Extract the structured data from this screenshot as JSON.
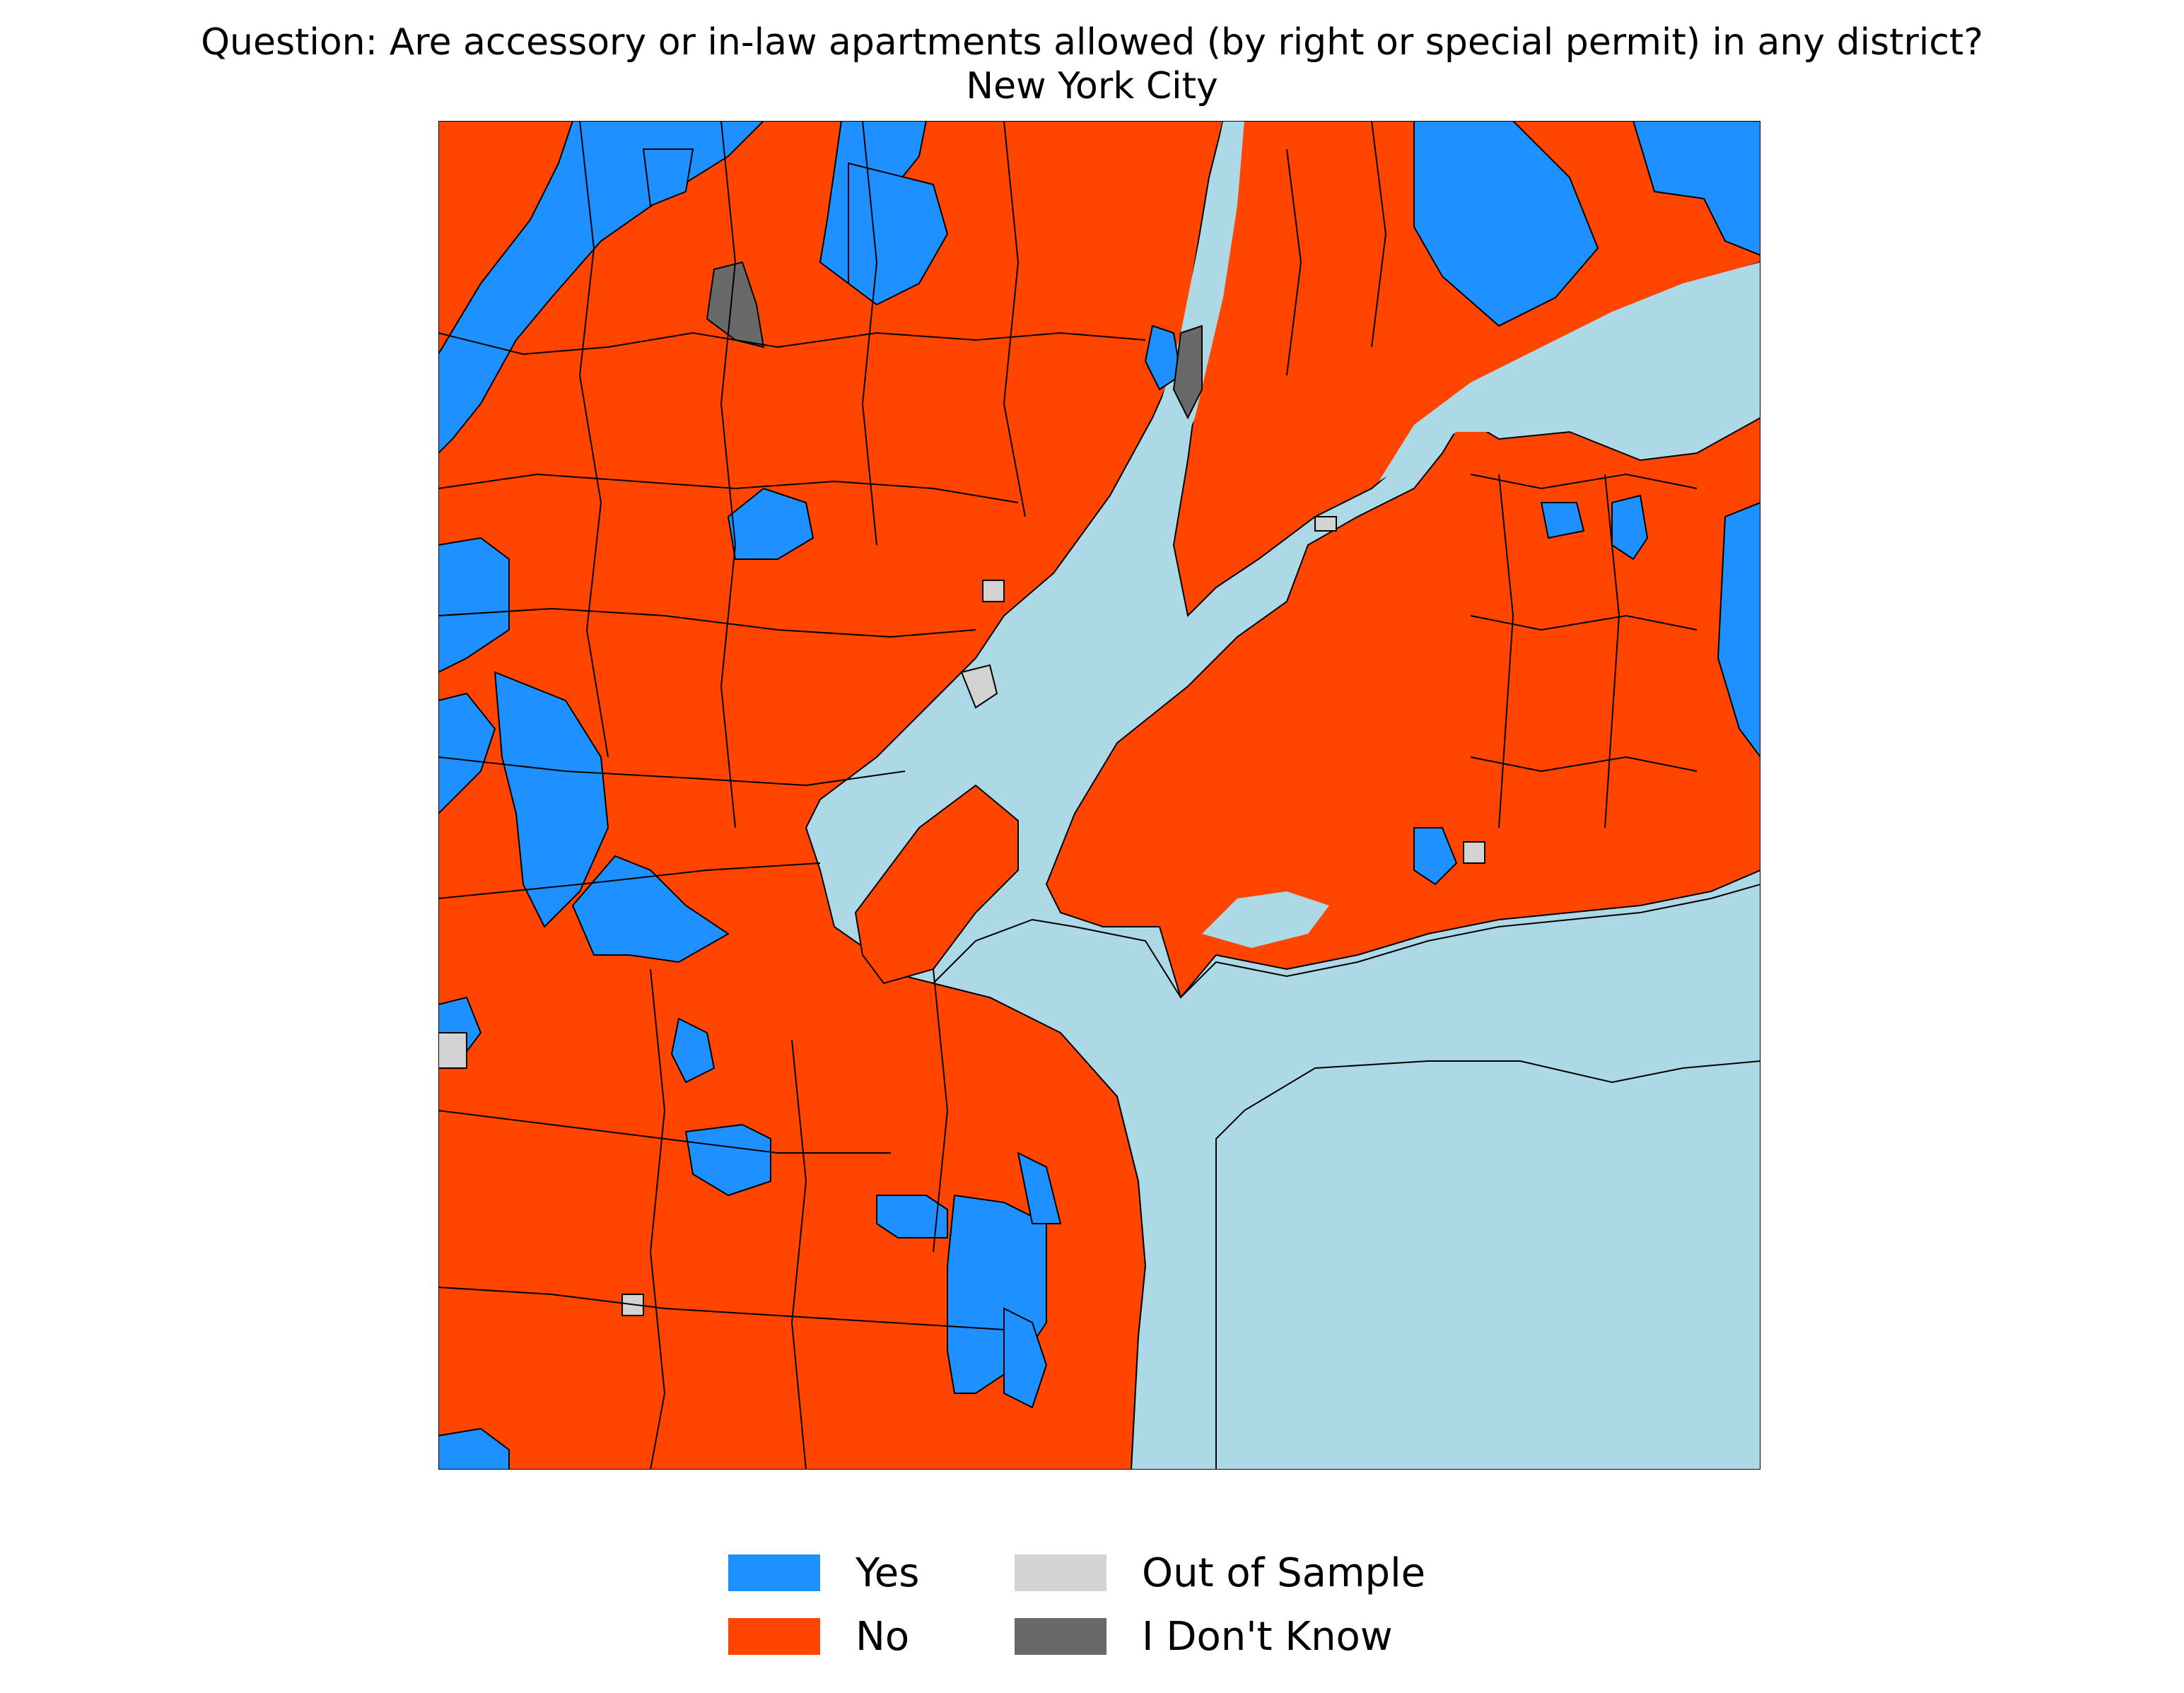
{
  "title": "Question: Are accessory or in-law apartments allowed (by right or special permit) in any district?",
  "subtitle": "New York City",
  "colors": {
    "yes": "#1e90ff",
    "no": "#ff4500",
    "out_of_sample": "#d3d3d3",
    "dont_know": "#696969",
    "water": "#add8e6"
  },
  "legend": [
    {
      "label": "Yes",
      "color": "#1e90ff"
    },
    {
      "label": "No",
      "color": "#ff4500"
    },
    {
      "label": "Out of Sample",
      "color": "#d3d3d3"
    },
    {
      "label": "I Don't Know",
      "color": "#696969"
    }
  ]
}
